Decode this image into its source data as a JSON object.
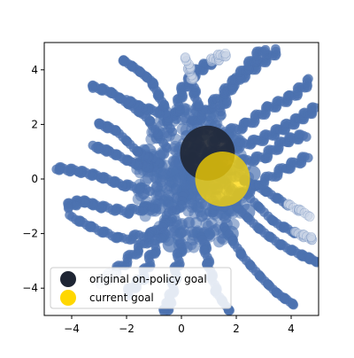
{
  "chart_data": {
    "type": "scatter",
    "title": "",
    "xlabel": "",
    "ylabel": "",
    "xlim": [
      -5,
      5
    ],
    "ylim": [
      -5,
      5
    ],
    "grid": false,
    "aspect": "equal",
    "x_ticks": [
      -4,
      -2,
      0,
      2,
      4
    ],
    "y_ticks": [
      -4,
      -2,
      0,
      2,
      4
    ],
    "x_tick_labels": [
      "−4",
      "−2",
      "0",
      "2",
      "4"
    ],
    "y_tick_labels": [
      "−4",
      "−2",
      "0",
      "2",
      "4"
    ],
    "legend_position": "lower-left",
    "trajectory_color": "#4c72b0",
    "trajectories": [
      [
        [
          -0.8,
          0.6
        ],
        [
          -1.6,
          1.0
        ],
        [
          -2.4,
          1.8
        ],
        [
          -3.0,
          2.0
        ]
      ],
      [
        [
          -0.6,
          1.2
        ],
        [
          -1.2,
          2.2
        ],
        [
          -2.0,
          2.8
        ],
        [
          -2.6,
          3.2
        ],
        [
          -3.3,
          3.4
        ]
      ],
      [
        [
          -0.4,
          1.8
        ],
        [
          -0.7,
          2.8
        ],
        [
          -1.1,
          3.6
        ],
        [
          -1.6,
          4.0
        ],
        [
          -2.2,
          4.4
        ]
      ],
      [
        [
          -0.2,
          2.2
        ],
        [
          0.0,
          3.2
        ],
        [
          0.5,
          3.9
        ],
        [
          1.1,
          4.3
        ],
        [
          1.6,
          4.6
        ]
      ],
      [
        [
          0.4,
          2.0
        ],
        [
          1.2,
          2.8
        ],
        [
          2.0,
          3.6
        ],
        [
          2.8,
          4.2
        ],
        [
          3.5,
          4.7
        ]
      ],
      [
        [
          1.4,
          1.6
        ],
        [
          2.4,
          2.0
        ],
        [
          3.2,
          2.6
        ],
        [
          4.0,
          3.0
        ],
        [
          4.7,
          3.6
        ]
      ],
      [
        [
          1.8,
          1.2
        ],
        [
          2.8,
          1.4
        ],
        [
          3.6,
          1.8
        ],
        [
          4.3,
          2.2
        ],
        [
          4.9,
          2.6
        ]
      ],
      [
        [
          2.0,
          0.6
        ],
        [
          3.0,
          0.8
        ],
        [
          3.8,
          1.4
        ],
        [
          4.5,
          1.6
        ]
      ],
      [
        [
          2.2,
          0.0
        ],
        [
          3.0,
          -0.4
        ],
        [
          3.8,
          -0.9
        ],
        [
          4.6,
          -1.3
        ]
      ],
      [
        [
          2.0,
          -1.0
        ],
        [
          2.8,
          -1.8
        ],
        [
          3.6,
          -2.4
        ],
        [
          4.4,
          -2.8
        ],
        [
          4.9,
          -3.0
        ]
      ],
      [
        [
          1.6,
          -1.8
        ],
        [
          2.2,
          -2.8
        ],
        [
          2.9,
          -3.6
        ],
        [
          3.5,
          -4.2
        ],
        [
          4.1,
          -4.6
        ]
      ],
      [
        [
          0.8,
          -2.2
        ],
        [
          1.0,
          -3.2
        ],
        [
          1.3,
          -4.2
        ],
        [
          1.8,
          -4.9
        ]
      ],
      [
        [
          0.0,
          -2.4
        ],
        [
          -0.2,
          -3.4
        ],
        [
          -0.4,
          -4.4
        ],
        [
          -0.6,
          -4.9
        ]
      ],
      [
        [
          -0.8,
          -1.8
        ],
        [
          -1.6,
          -2.6
        ],
        [
          -2.4,
          -3.4
        ],
        [
          -3.0,
          -3.8
        ]
      ],
      [
        [
          -1.0,
          -1.0
        ],
        [
          -2.0,
          -1.2
        ],
        [
          -3.0,
          -1.0
        ],
        [
          -3.6,
          -0.8
        ],
        [
          -4.2,
          -1.0
        ]
      ],
      [
        [
          -1.2,
          -0.4
        ],
        [
          -2.2,
          -0.2
        ],
        [
          -3.0,
          0.1
        ],
        [
          -3.8,
          0.3
        ],
        [
          -4.6,
          0.4
        ]
      ],
      [
        [
          -1.0,
          0.4
        ],
        [
          -1.8,
          0.6
        ],
        [
          -2.6,
          1.0
        ],
        [
          -3.2,
          1.2
        ]
      ],
      [
        [
          0.2,
          -0.6
        ],
        [
          -1.0,
          -2.0
        ],
        [
          -2.2,
          -2.2
        ],
        [
          -3.2,
          -1.8
        ],
        [
          -4.0,
          -1.4
        ]
      ],
      [
        [
          0.6,
          2.6
        ],
        [
          0.4,
          3.6
        ],
        [
          0.2,
          4.4
        ]
      ],
      [
        [
          1.0,
          -1.2
        ],
        [
          1.8,
          -0.8
        ],
        [
          2.8,
          -0.2
        ],
        [
          3.8,
          0.4
        ],
        [
          4.6,
          0.8
        ]
      ],
      [
        [
          -0.4,
          -1.4
        ],
        [
          -1.0,
          -2.6
        ],
        [
          -1.4,
          -3.6
        ],
        [
          -2.0,
          -4.2
        ]
      ],
      [
        [
          1.4,
          2.4
        ],
        [
          1.8,
          3.4
        ],
        [
          2.4,
          4.1
        ],
        [
          3.0,
          4.8
        ]
      ],
      [
        [
          -0.6,
          2.4
        ],
        [
          -1.4,
          2.6
        ],
        [
          -2.0,
          2.9
        ]
      ],
      [
        [
          2.4,
          -0.6
        ],
        [
          3.4,
          -1.6
        ],
        [
          4.2,
          -2.0
        ],
        [
          4.8,
          -2.2
        ]
      ]
    ],
    "dense_core": [
      [
        -0.6,
        2.4
      ],
      [
        -0.4,
        -2.4
      ],
      [
        -1.2,
        1.0
      ],
      [
        1.8,
        -2.0
      ],
      [
        -0.8,
        -1.0
      ],
      [
        0.0,
        0.6
      ],
      [
        1.0,
        2.4
      ],
      [
        2.0,
        1.4
      ],
      [
        2.6,
        0.2
      ],
      [
        2.4,
        -1.2
      ]
    ],
    "series": [
      {
        "name": "original on-policy goal",
        "x": 0.95,
        "y": 0.95,
        "color": "#1e2533",
        "alpha": 0.9
      },
      {
        "name": "current goal",
        "x": 1.5,
        "y": 0.0,
        "color": "#ffd700",
        "alpha": 0.75
      }
    ]
  }
}
